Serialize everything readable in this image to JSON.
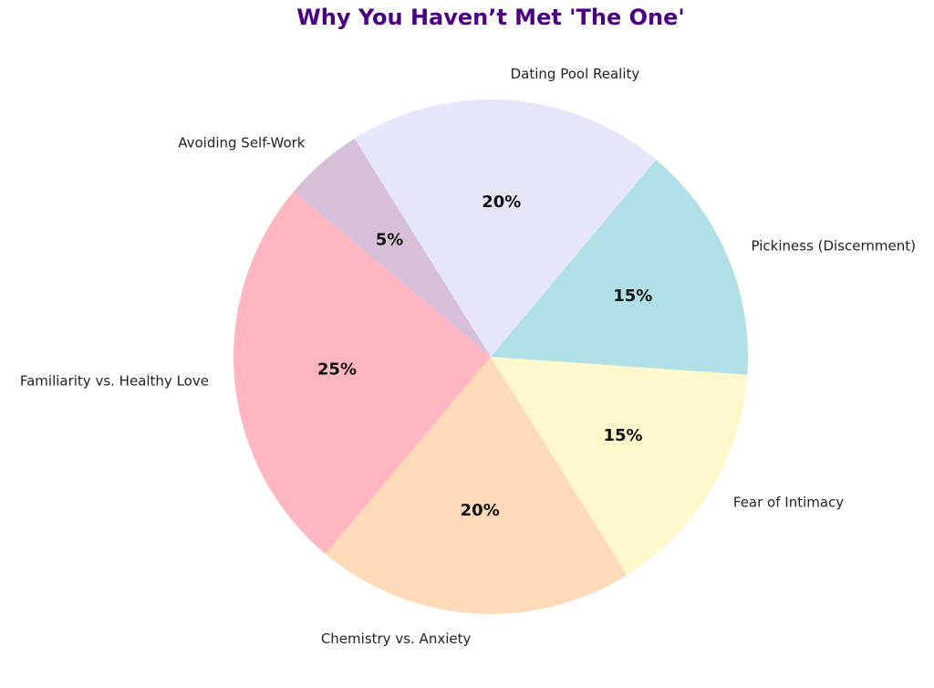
{
  "chart_data": {
    "type": "pie",
    "title": "Why You Haven’t Met 'The One'",
    "categories": [
      "Familiarity vs. Healthy Love",
      "Chemistry vs. Anxiety",
      "Fear of Intimacy",
      "Pickiness (Discernment)",
      "Dating Pool Reality",
      "Avoiding Self-Work"
    ],
    "values": [
      25,
      20,
      15,
      15,
      20,
      5
    ],
    "value_labels": [
      "25%",
      "20%",
      "15%",
      "15%",
      "20%",
      "5%"
    ],
    "colors": [
      "#ffb6c1",
      "#ffdab9",
      "#fff8cc",
      "#b0e0e6",
      "#e6e6fa",
      "#d8bfd8"
    ],
    "start_angle": 140
  }
}
